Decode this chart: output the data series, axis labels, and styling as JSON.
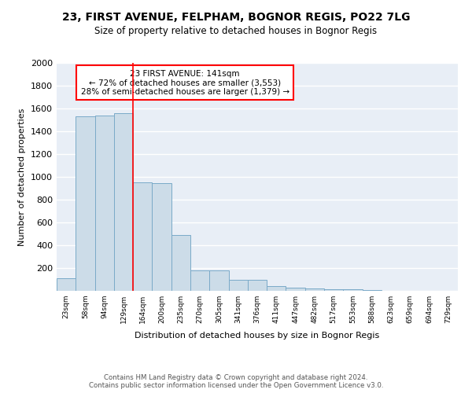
{
  "title1": "23, FIRST AVENUE, FELPHAM, BOGNOR REGIS, PO22 7LG",
  "title2": "Size of property relative to detached houses in Bognor Regis",
  "xlabel": "Distribution of detached houses by size in Bognor Regis",
  "ylabel": "Number of detached properties",
  "categories": [
    "23sqm",
    "58sqm",
    "94sqm",
    "129sqm",
    "164sqm",
    "200sqm",
    "235sqm",
    "270sqm",
    "305sqm",
    "341sqm",
    "376sqm",
    "411sqm",
    "447sqm",
    "482sqm",
    "517sqm",
    "553sqm",
    "588sqm",
    "623sqm",
    "659sqm",
    "694sqm",
    "729sqm"
  ],
  "values": [
    110,
    1530,
    1540,
    1560,
    950,
    945,
    490,
    180,
    180,
    100,
    100,
    40,
    30,
    20,
    15,
    13,
    5,
    3,
    2,
    1,
    0
  ],
  "bar_color": "#ccdce8",
  "bar_edge_color": "#7aaac8",
  "background_color": "#e8eef6",
  "grid_color": "#ffffff",
  "annotation_text": "23 FIRST AVENUE: 141sqm\n← 72% of detached houses are smaller (3,553)\n28% of semi-detached houses are larger (1,379) →",
  "vline_x": 3.5,
  "vline_color": "red",
  "ylim": [
    0,
    2000
  ],
  "yticks": [
    0,
    200,
    400,
    600,
    800,
    1000,
    1200,
    1400,
    1600,
    1800,
    2000
  ],
  "footnote": "Contains HM Land Registry data © Crown copyright and database right 2024.\nContains public sector information licensed under the Open Government Licence v3.0."
}
